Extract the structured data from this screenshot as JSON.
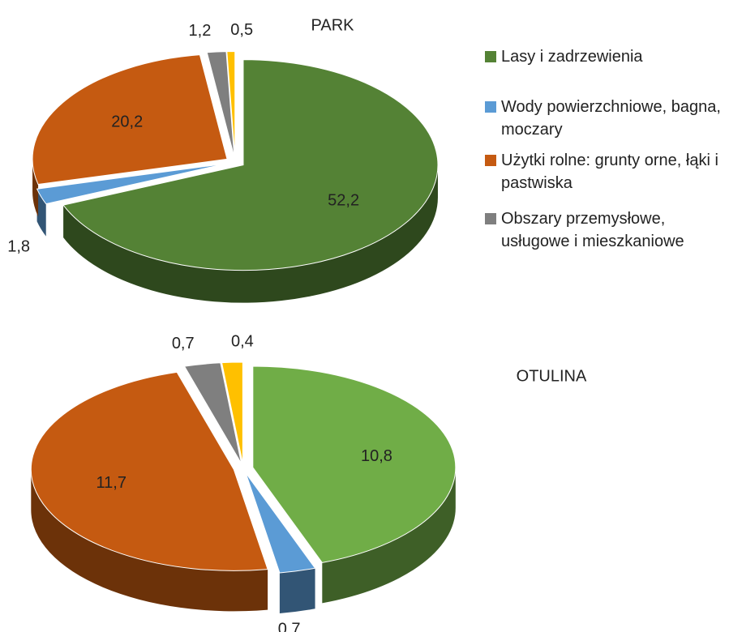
{
  "chart_data": [
    {
      "type": "pie",
      "title": "PARK",
      "categories": [
        "Lasy i zadrzewienia",
        "Wody powierzchniowe, bagna, moczary",
        "Użytki rolne: grunty orne, łąki i pastwiska",
        "Obszary przemysłowe, usługowe i mieszkaniowe",
        null
      ],
      "values": [
        52.2,
        1.8,
        20.2,
        1.2,
        0.5
      ],
      "value_labels": [
        "52,2",
        "1,8",
        "20,2",
        "1,2",
        "0,5"
      ],
      "colors": [
        "#548235",
        "#5b9bd5",
        "#c55a11",
        "#7f7f7f",
        "#ffc000"
      ]
    },
    {
      "type": "pie",
      "title": "OTULINA",
      "values": [
        10.8,
        0.7,
        11.7,
        0.7,
        0.4
      ],
      "value_labels": [
        "10,8",
        "0,7",
        "11,7",
        "0,7",
        "0,4"
      ],
      "colors": [
        "#70ad47",
        "#5b9bd5",
        "#c55a11",
        "#7f7f7f",
        "#ffc000"
      ]
    }
  ]
}
